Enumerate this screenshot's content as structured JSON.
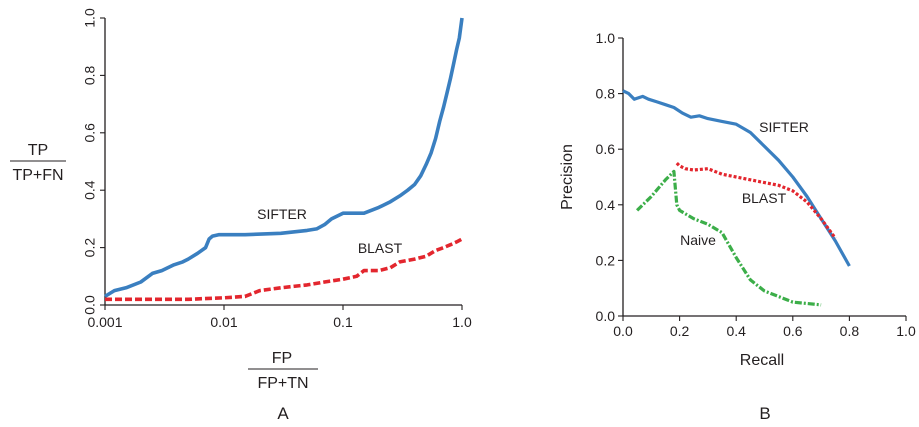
{
  "chart_data": [
    {
      "panel": "A",
      "type": "line",
      "xscale": "log",
      "xlim": [
        0.001,
        1.0
      ],
      "ylim": [
        0.0,
        1.0
      ],
      "xticks": [
        "0.001",
        "0.01",
        "0.1",
        "1.0"
      ],
      "yticks": [
        "0.0",
        "0.2",
        "0.4",
        "0.6",
        "0.8",
        "1.0"
      ],
      "xlabel_num": "FP",
      "xlabel_den": "FP+TN",
      "ylabel_num": "TP",
      "ylabel_den": "TP+FN",
      "panel_label": "A",
      "series": [
        {
          "name": "SIFTER",
          "color": "#3a7fc0",
          "style": "solid",
          "x": [
            0.001,
            0.0012,
            0.0015,
            0.002,
            0.0025,
            0.003,
            0.0038,
            0.0045,
            0.005,
            0.006,
            0.007,
            0.0075,
            0.008,
            0.009,
            0.015,
            0.03,
            0.05,
            0.06,
            0.07,
            0.08,
            0.1,
            0.15,
            0.2,
            0.25,
            0.3,
            0.35,
            0.4,
            0.45,
            0.5,
            0.55,
            0.6,
            0.65,
            0.7,
            0.75,
            0.8,
            0.85,
            0.9,
            0.95,
            1.0
          ],
          "y": [
            0.03,
            0.05,
            0.06,
            0.08,
            0.11,
            0.12,
            0.14,
            0.15,
            0.16,
            0.18,
            0.2,
            0.23,
            0.24,
            0.245,
            0.245,
            0.25,
            0.26,
            0.265,
            0.28,
            0.3,
            0.32,
            0.32,
            0.34,
            0.36,
            0.38,
            0.4,
            0.42,
            0.45,
            0.49,
            0.53,
            0.58,
            0.64,
            0.69,
            0.74,
            0.79,
            0.84,
            0.89,
            0.93,
            1.0
          ]
        },
        {
          "name": "BLAST",
          "color": "#e3262e",
          "style": "dashed",
          "x": [
            0.001,
            0.002,
            0.005,
            0.01,
            0.015,
            0.02,
            0.03,
            0.05,
            0.07,
            0.1,
            0.13,
            0.15,
            0.2,
            0.25,
            0.3,
            0.4,
            0.5,
            0.6,
            0.7,
            0.8,
            0.9,
            1.0
          ],
          "y": [
            0.02,
            0.02,
            0.02,
            0.025,
            0.03,
            0.05,
            0.06,
            0.07,
            0.08,
            0.09,
            0.1,
            0.12,
            0.12,
            0.13,
            0.15,
            0.16,
            0.17,
            0.19,
            0.2,
            0.21,
            0.22,
            0.23
          ]
        }
      ]
    },
    {
      "panel": "B",
      "type": "line",
      "xlim": [
        0.0,
        1.0
      ],
      "ylim": [
        0.0,
        1.0
      ],
      "xticks": [
        "0.0",
        "0.2",
        "0.4",
        "0.6",
        "0.8",
        "1.0"
      ],
      "yticks": [
        "0.0",
        "0.2",
        "0.4",
        "0.6",
        "0.8",
        "1.0"
      ],
      "xlabel": "Recall",
      "ylabel": "Precision",
      "panel_label": "B",
      "series": [
        {
          "name": "SIFTER",
          "color": "#3a7fc0",
          "style": "solid",
          "x": [
            0.0,
            0.02,
            0.04,
            0.07,
            0.09,
            0.12,
            0.15,
            0.18,
            0.21,
            0.24,
            0.27,
            0.3,
            0.35,
            0.4,
            0.45,
            0.5,
            0.55,
            0.6,
            0.65,
            0.7,
            0.75,
            0.8
          ],
          "y": [
            0.81,
            0.8,
            0.78,
            0.79,
            0.78,
            0.77,
            0.76,
            0.75,
            0.73,
            0.715,
            0.72,
            0.71,
            0.7,
            0.69,
            0.66,
            0.61,
            0.56,
            0.5,
            0.43,
            0.35,
            0.27,
            0.18
          ]
        },
        {
          "name": "BLAST",
          "color": "#e3262e",
          "style": "dotted",
          "x": [
            0.19,
            0.2,
            0.22,
            0.25,
            0.3,
            0.35,
            0.4,
            0.45,
            0.5,
            0.55,
            0.6,
            0.65,
            0.7,
            0.75
          ],
          "y": [
            0.55,
            0.54,
            0.53,
            0.525,
            0.53,
            0.51,
            0.5,
            0.49,
            0.48,
            0.47,
            0.45,
            0.41,
            0.35,
            0.28
          ]
        },
        {
          "name": "Naive",
          "color": "#3cae49",
          "style": "dashdot",
          "x": [
            0.05,
            0.1,
            0.15,
            0.18,
            0.19,
            0.2,
            0.25,
            0.3,
            0.35,
            0.4,
            0.45,
            0.5,
            0.55,
            0.6,
            0.65,
            0.7
          ],
          "y": [
            0.38,
            0.43,
            0.49,
            0.52,
            0.4,
            0.38,
            0.35,
            0.33,
            0.3,
            0.21,
            0.13,
            0.09,
            0.07,
            0.05,
            0.045,
            0.04
          ]
        }
      ]
    }
  ]
}
